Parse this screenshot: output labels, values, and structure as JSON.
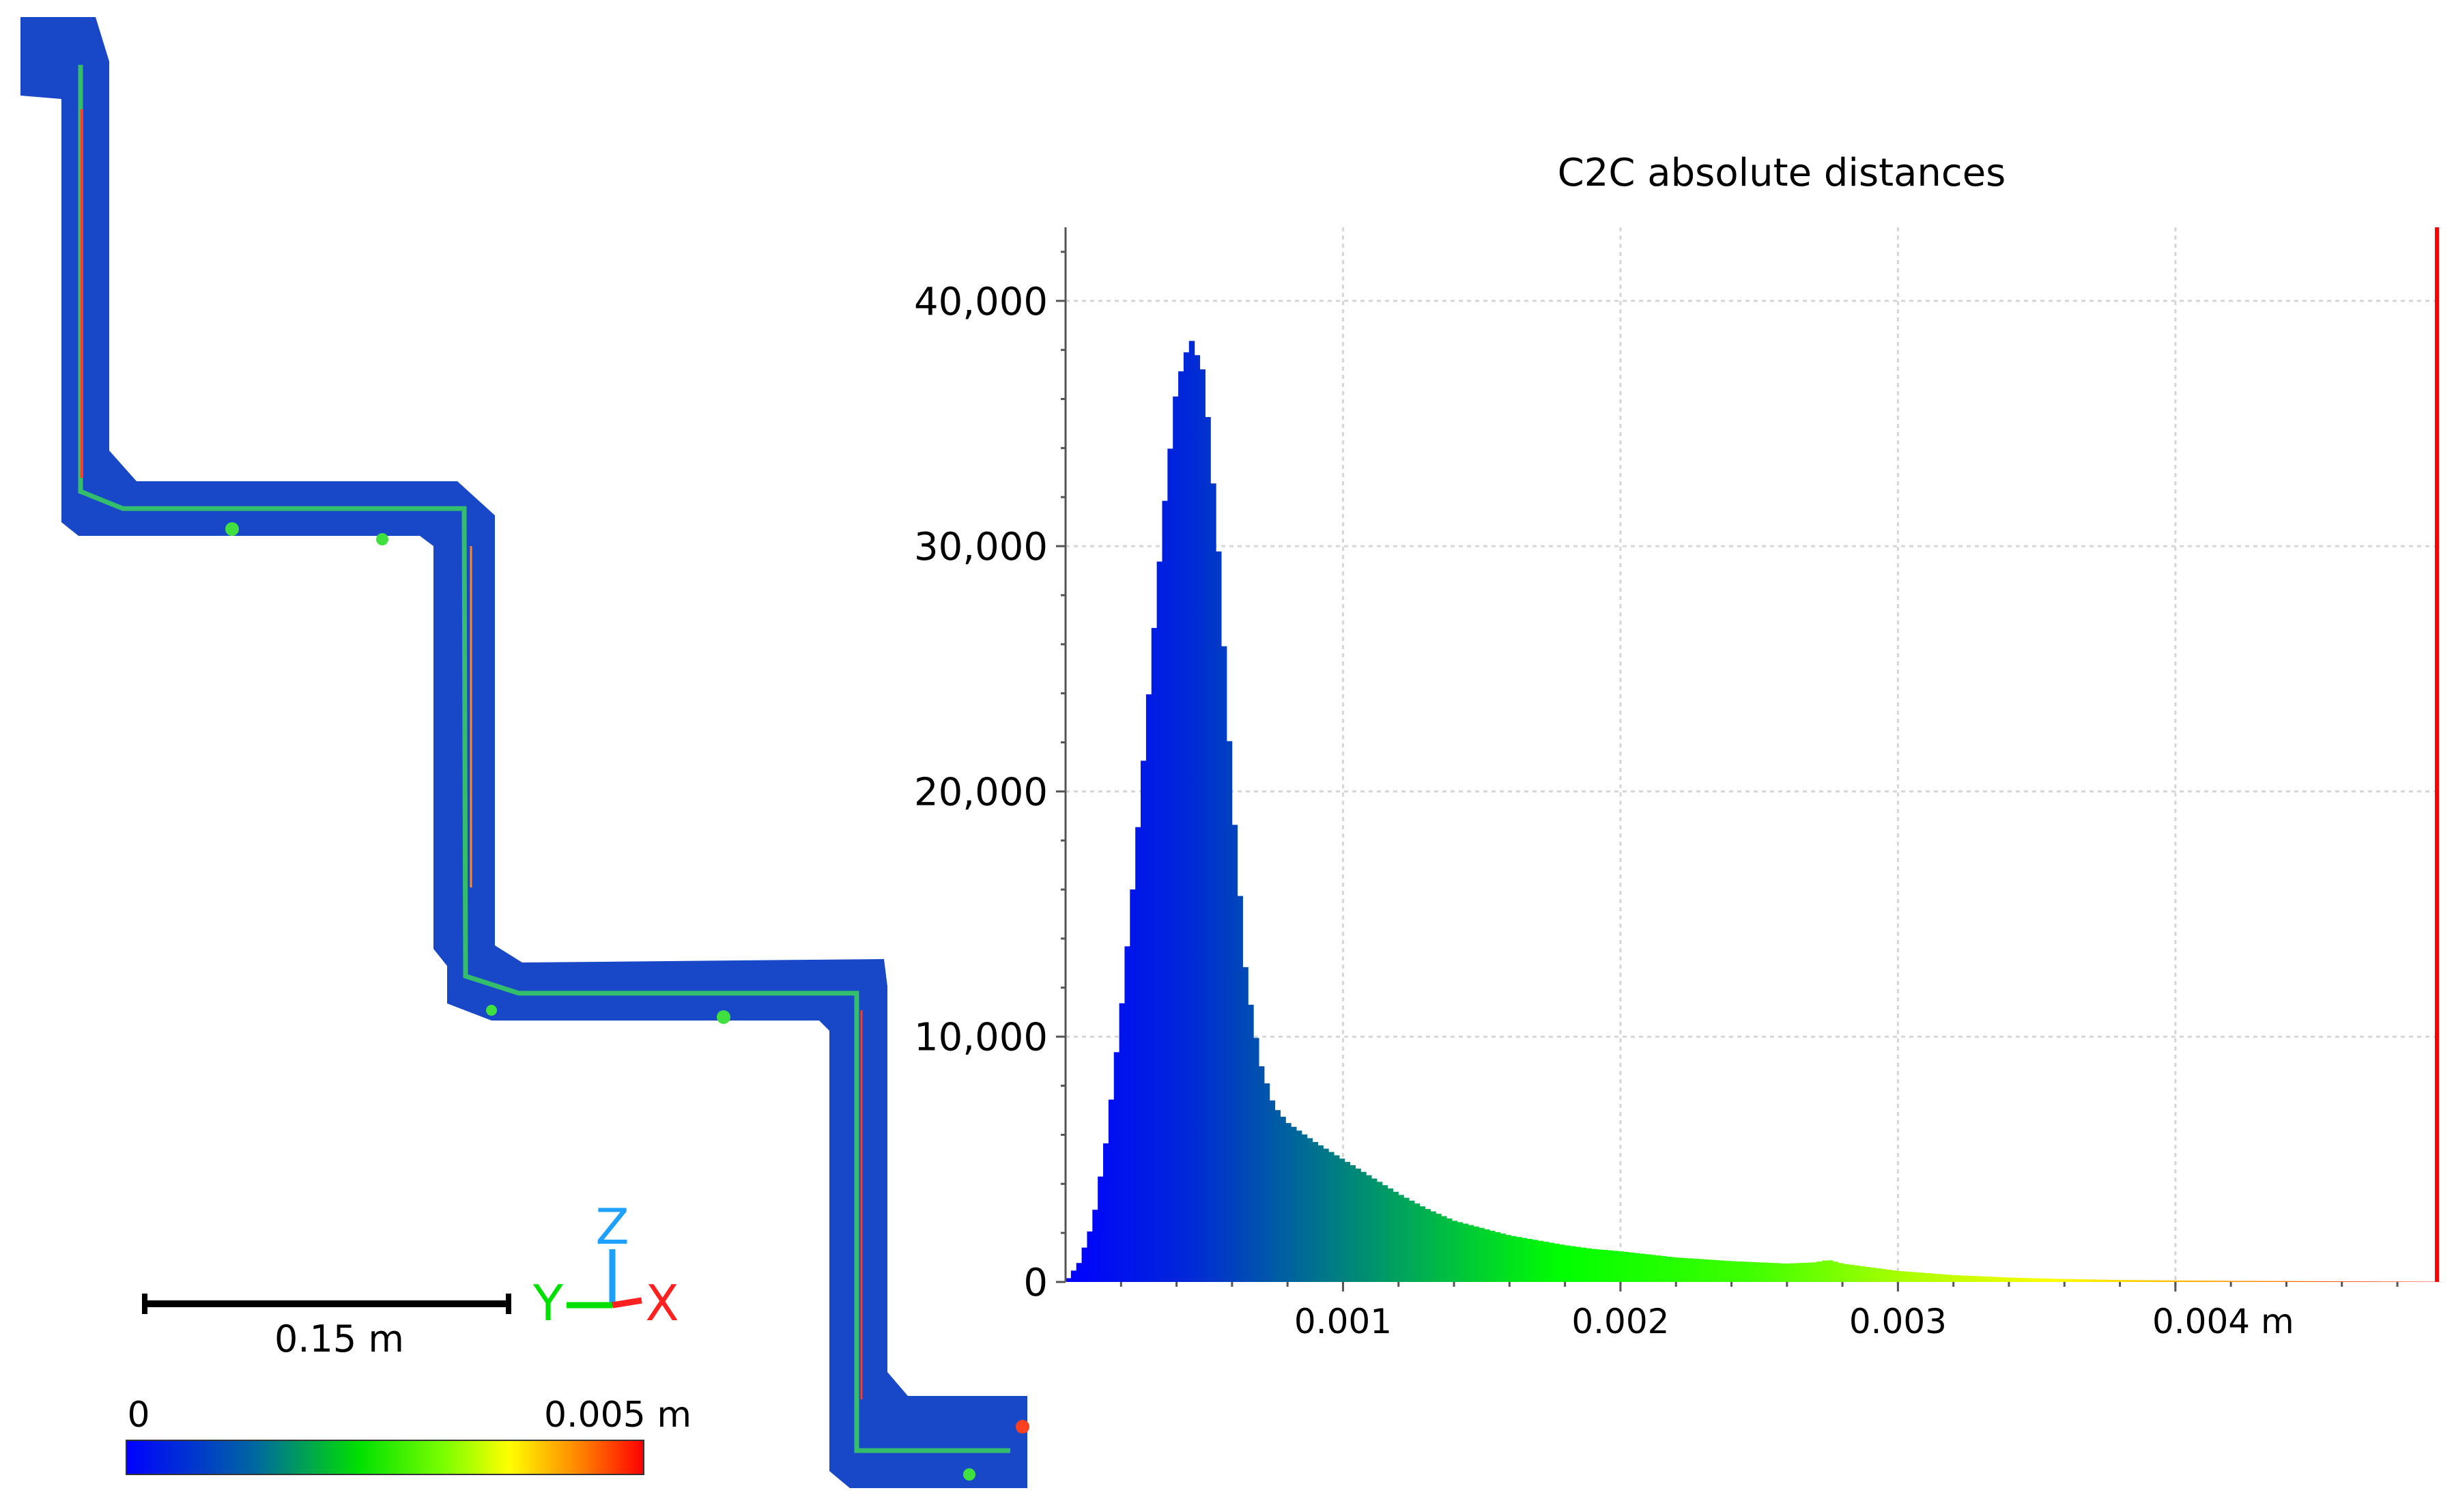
{
  "chart_data": {
    "type": "bar",
    "title": "C2C absolute distances",
    "xlabel": "",
    "ylabel": "",
    "x_unit": "m",
    "xlim": [
      0,
      0.00495
    ],
    "ylim": [
      0,
      43000
    ],
    "grid": true,
    "x_ticks": [
      {
        "value": 0.001,
        "label": "0.001"
      },
      {
        "value": 0.002,
        "label": "0.002"
      },
      {
        "value": 0.003,
        "label": "0.003"
      },
      {
        "value": 0.004,
        "label": "0.004 m"
      }
    ],
    "y_ticks": [
      {
        "value": 0,
        "label": "0"
      },
      {
        "value": 10000,
        "label": "10,000"
      },
      {
        "value": 20000,
        "label": "20,000"
      },
      {
        "value": 30000,
        "label": "30,000"
      },
      {
        "value": 40000,
        "label": "40,000"
      }
    ],
    "histogram_profile": {
      "x": [
        0,
        5e-05,
        0.0001,
        0.00015,
        0.0002,
        0.00025,
        0.0003,
        0.00035,
        0.0004,
        0.00045,
        0.0005,
        0.00055,
        0.0006,
        0.00065,
        0.0007,
        0.00075,
        0.0008,
        0.0009,
        0.001,
        0.0011,
        0.0012,
        0.0013,
        0.0014,
        0.0015,
        0.0016,
        0.0017,
        0.0018,
        0.0019,
        0.002,
        0.0022,
        0.0024,
        0.0026,
        0.0027,
        0.00275,
        0.0028,
        0.003,
        0.0032,
        0.0034,
        0.0036,
        0.0038,
        0.004,
        0.0042,
        0.0044,
        0.0046,
        0.0048,
        0.00495
      ],
      "y": [
        0,
        800,
        2500,
        6000,
        11000,
        17000,
        24000,
        31000,
        36500,
        38500,
        37000,
        30000,
        20000,
        12500,
        9000,
        7200,
        6500,
        5700,
        5000,
        4300,
        3600,
        3000,
        2500,
        2200,
        1900,
        1700,
        1500,
        1350,
        1250,
        1000,
        850,
        750,
        800,
        900,
        750,
        450,
        280,
        180,
        120,
        80,
        60,
        45,
        35,
        25,
        15,
        10
      ]
    },
    "max_marker_x": 0.00495,
    "colorscale": [
      "#0000ff",
      "#0050c8",
      "#00a060",
      "#00ff00",
      "#c0ff00",
      "#ffff00",
      "#ff8000",
      "#ff0000"
    ],
    "marker_color": "#ff0000"
  },
  "scale_bar": {
    "label": "0.15 m"
  },
  "axes_gizmo": {
    "z": "Z",
    "y": "Y",
    "x": "X",
    "z_color": "#1ea0ff",
    "y_color": "#00e000",
    "x_color": "#ff2020"
  },
  "color_bar": {
    "min_label": "0",
    "max_label": "0.005 m"
  }
}
